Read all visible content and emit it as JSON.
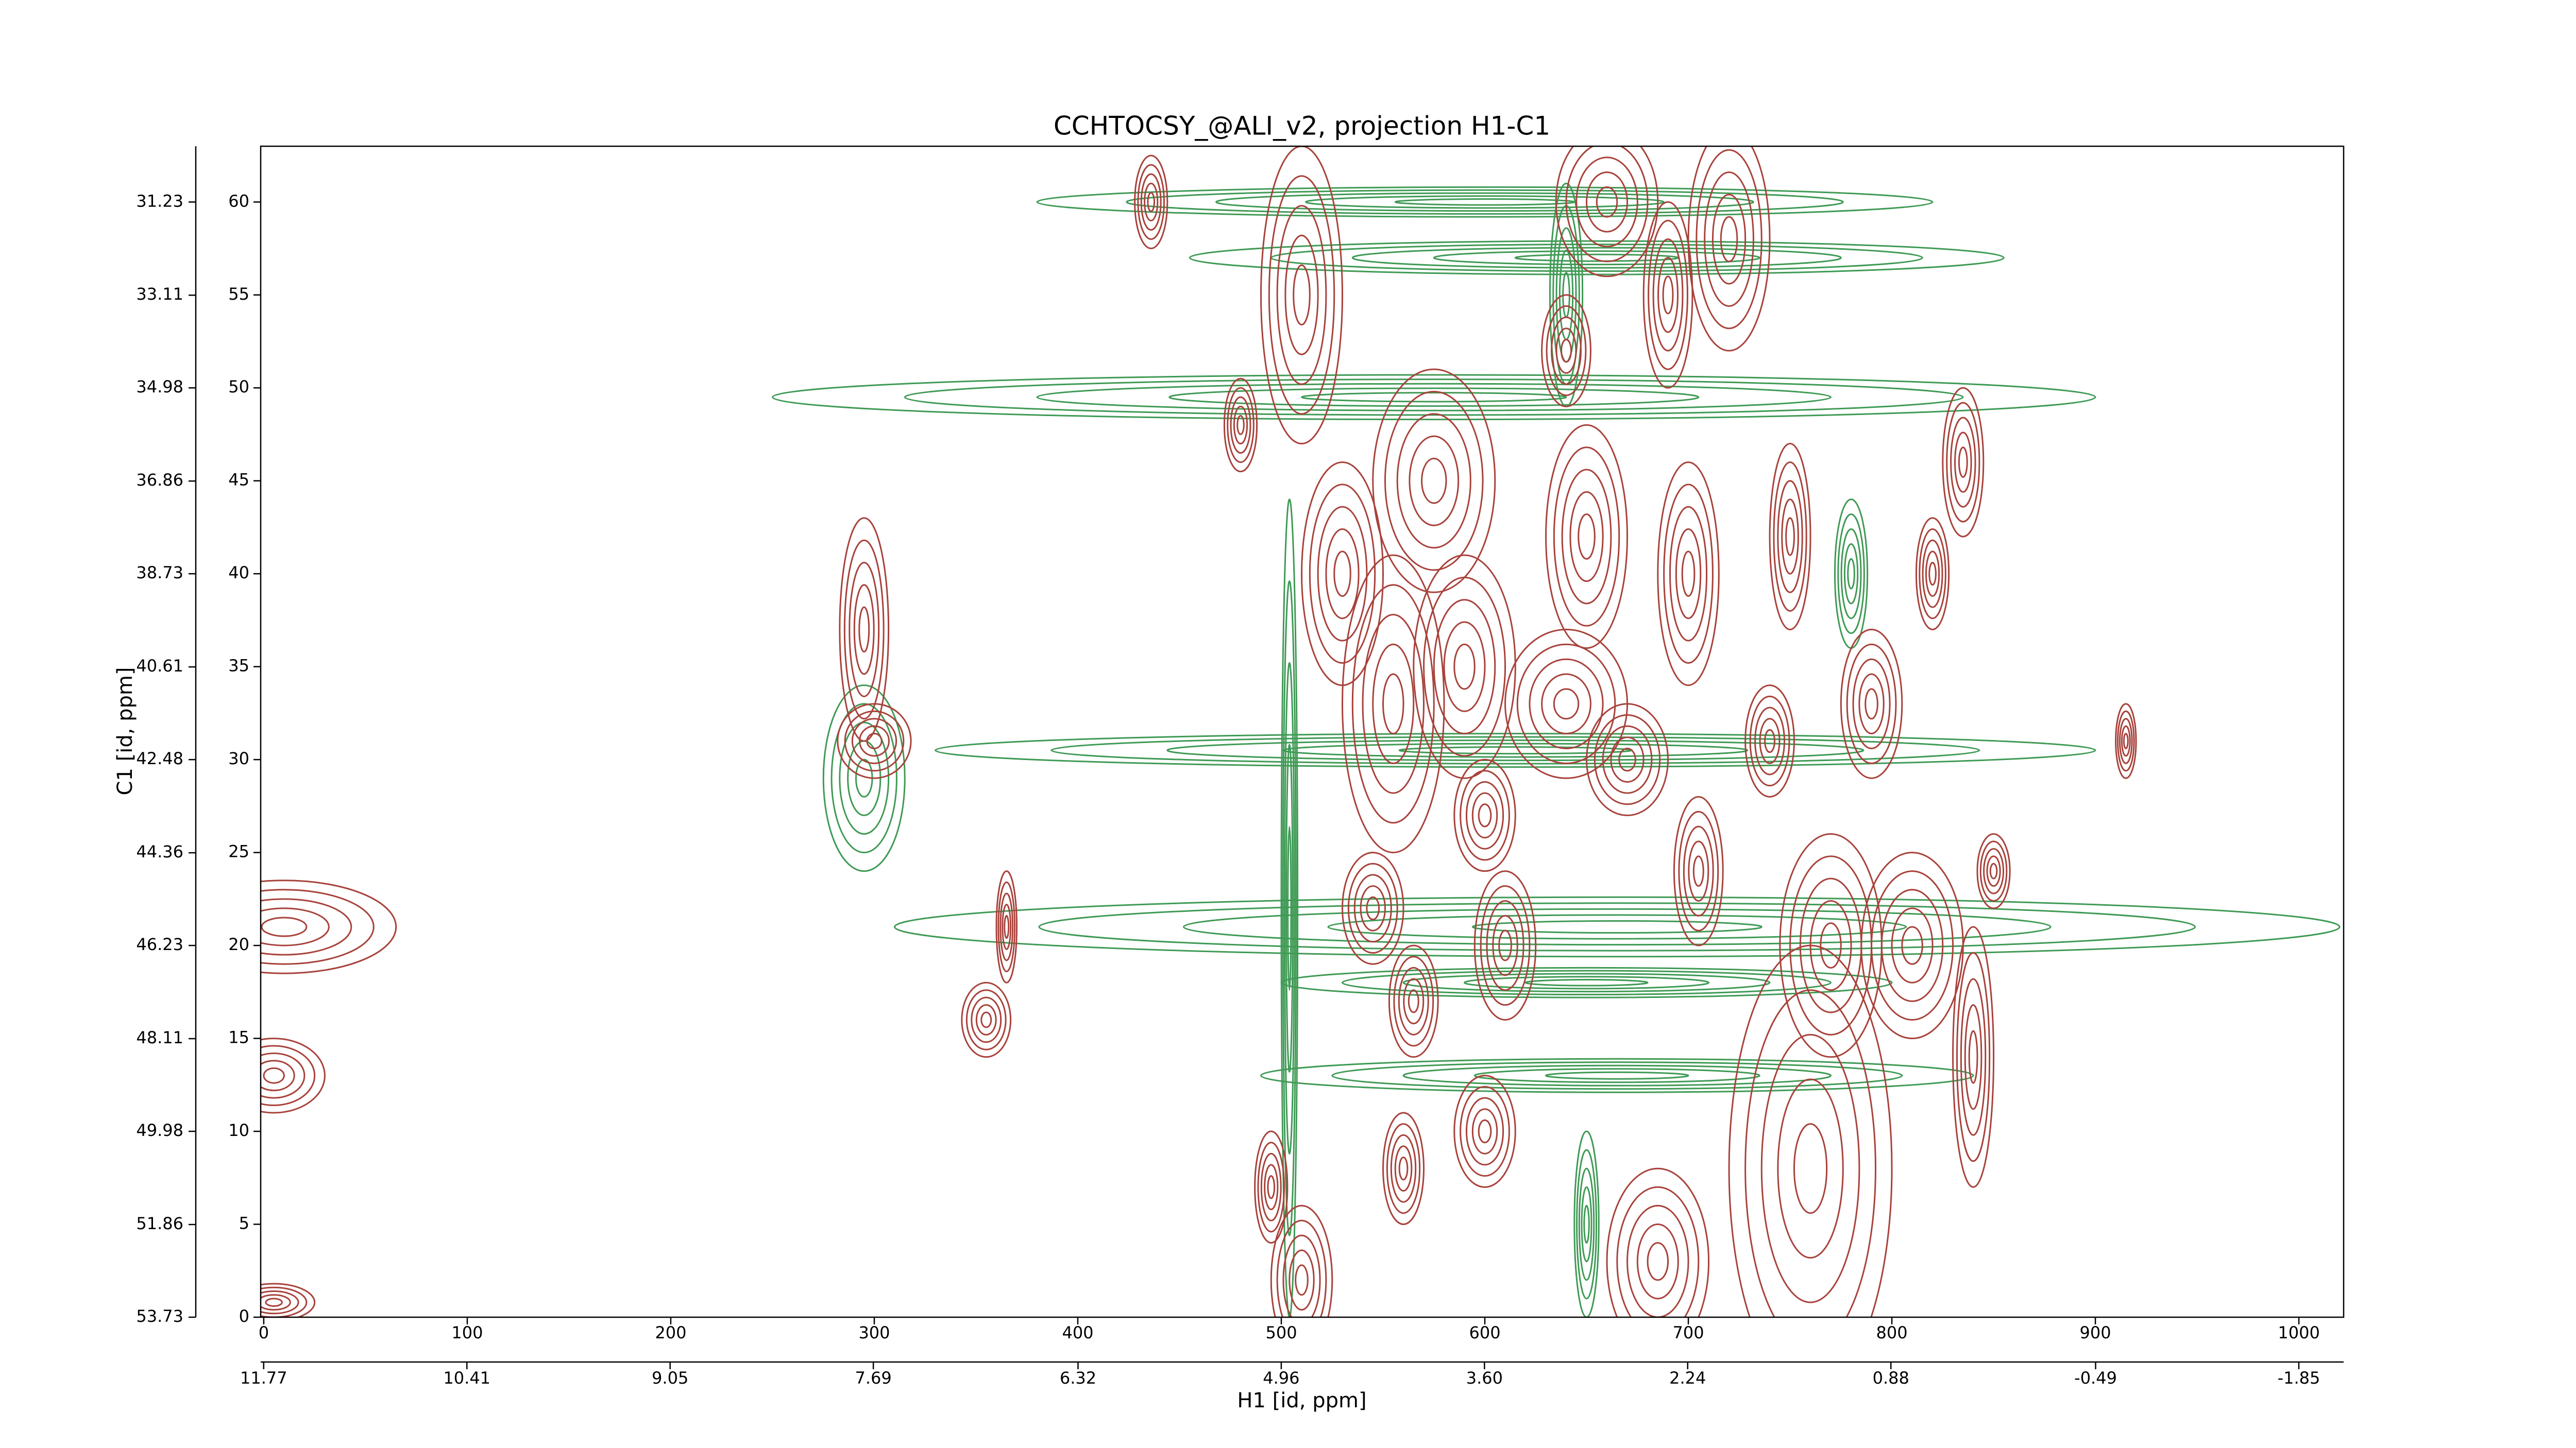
{
  "chart_data": {
    "type": "contour",
    "title": "CCHTOCSY_@ALI_v2, projection H1-C1",
    "xlabel": "H1 [id, ppm]",
    "ylabel": "C1 [id, ppm]",
    "xlim": [
      -1.5,
      1022
    ],
    "xticks": [
      0,
      100,
      200,
      300,
      400,
      500,
      600,
      700,
      800,
      900,
      1000
    ],
    "x2lim": [
      11.79,
      -2.15
    ],
    "x2ticks": [
      11.77,
      10.41,
      9.05,
      7.69,
      6.32,
      4.96,
      {
        "value": 3.6,
        "label": "3.60"
      },
      2.24,
      0.88,
      -0.49,
      -1.85
    ],
    "ylim": [
      0,
      63
    ],
    "yticks": [
      0,
      5,
      10,
      15,
      20,
      25,
      30,
      35,
      40,
      45,
      50,
      55,
      60
    ],
    "y2lim": [
      53.73,
      30.105
    ],
    "y2ticks": [
      53.73,
      51.86,
      49.98,
      48.11,
      46.23,
      44.36,
      42.48,
      40.61,
      38.73,
      36.86,
      34.98,
      33.11,
      31.23
    ],
    "series": [
      {
        "color": "#3f9a55",
        "x": [
          665,
          615,
          575,
          650,
          665,
          600,
          655,
          295,
          504,
          650,
          780,
          640
        ],
        "y": [
          21,
          30.5,
          49.5,
          18,
          13,
          60,
          57,
          29,
          22,
          5,
          40,
          55
        ],
        "rx": [
          355,
          285,
          325,
          150,
          175,
          220,
          200,
          20,
          4,
          6,
          8,
          8
        ],
        "ry": [
          1.6,
          0.9,
          1.2,
          0.8,
          0.9,
          0.8,
          0.9,
          5,
          22,
          5,
          4,
          6
        ]
      },
      {
        "color": "#a8423b",
        "x": [
          10,
          5,
          5,
          295,
          300,
          355,
          365,
          436,
          480,
          495,
          510,
          510,
          530,
          545,
          555,
          565,
          575,
          590,
          600,
          610,
          640,
          650,
          640,
          660,
          670,
          690,
          700,
          705,
          720,
          740,
          760,
          750,
          770,
          790,
          810,
          820,
          840,
          850,
          835,
          685,
          915,
          600,
          560
        ],
        "y": [
          21,
          13,
          0.8,
          37,
          31,
          16,
          21,
          60,
          48,
          7,
          2,
          55,
          40,
          22,
          33,
          17,
          45,
          35,
          27,
          20,
          52,
          42,
          33,
          60,
          30,
          55,
          40,
          24,
          58,
          31,
          8,
          42,
          20,
          33,
          20,
          40,
          14,
          24,
          46,
          3,
          31,
          10,
          8
        ],
        "rx": [
          55,
          25,
          20,
          12,
          18,
          12,
          5,
          8,
          8,
          8,
          15,
          20,
          20,
          15,
          25,
          12,
          30,
          25,
          15,
          15,
          12,
          20,
          30,
          25,
          20,
          12,
          15,
          12,
          20,
          12,
          40,
          10,
          25,
          15,
          25,
          8,
          10,
          8,
          10,
          25,
          5,
          15,
          10
        ],
        "ry": [
          2.5,
          2,
          1,
          6,
          2,
          2,
          3,
          2.5,
          2.5,
          3,
          4,
          8,
          6,
          3,
          8,
          3,
          6,
          6,
          3,
          4,
          3,
          6,
          4,
          4,
          3,
          5,
          6,
          4,
          6,
          3,
          12,
          5,
          6,
          4,
          5,
          3,
          7,
          2,
          4,
          5,
          2,
          3,
          3
        ]
      }
    ]
  }
}
